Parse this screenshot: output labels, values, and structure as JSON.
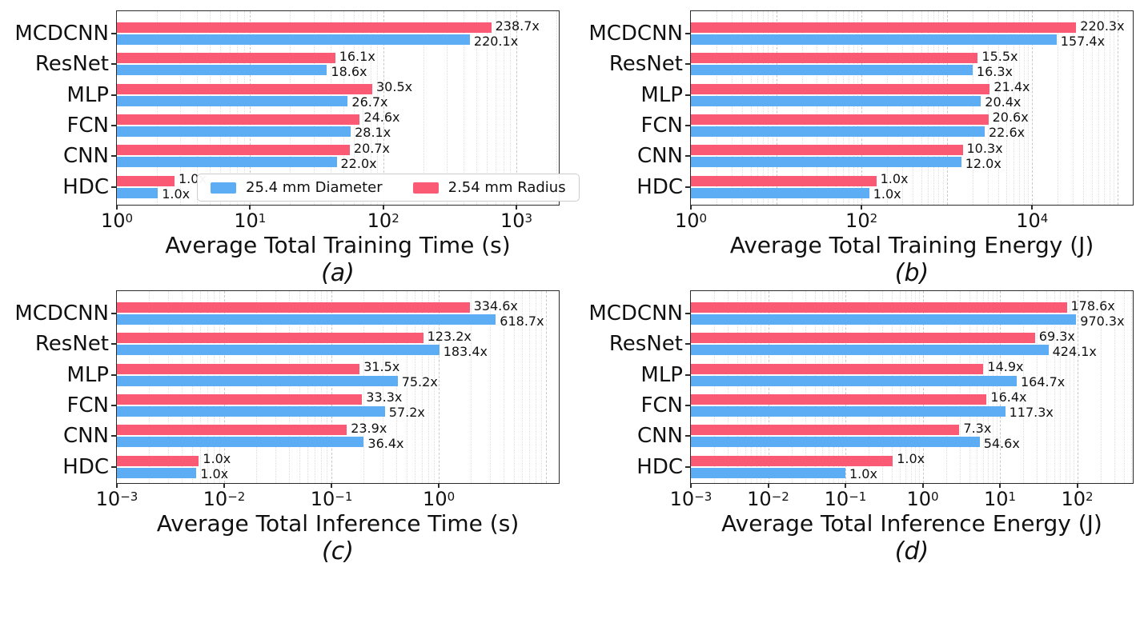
{
  "figure": {
    "background": "#ffffff"
  },
  "colors": {
    "diameter_blue": "#5dadf4",
    "radius_red": "#fb5a74",
    "text": "#111111"
  },
  "legend": {
    "items": [
      {
        "name": "diameter",
        "label": "25.4 mm Diameter",
        "color": "#5dadf4"
      },
      {
        "name": "radius",
        "label": "2.54 mm Radius",
        "color": "#fb5a74"
      }
    ]
  },
  "chart_data": [
    {
      "type": "bar",
      "orientation": "horizontal",
      "xscale": "log",
      "caption": "(a)",
      "xlabel": "Average Total Training Time (s)",
      "categories": [
        "MCDCNN",
        "ResNet",
        "MLP",
        "FCN",
        "CNN",
        "HDC"
      ],
      "xlim": [
        1,
        2140
      ],
      "tick_exponents": [
        0,
        1,
        2,
        3
      ],
      "grid": true,
      "legend_position": "lower-center-right",
      "show_legend": true,
      "series": [
        {
          "name": "2.54 mm Radius",
          "color": "#fb5a74",
          "row": "top",
          "values": [
            647,
            43.6,
            82.7,
            66.7,
            56.1,
            2.71
          ],
          "labels": [
            "238.7x",
            "16.1x",
            "30.5x",
            "24.6x",
            "20.7x",
            "1.0x"
          ]
        },
        {
          "name": "25.4 mm Diameter",
          "color": "#5dadf4",
          "row": "bottom",
          "values": [
            447,
            37.8,
            54.2,
            57.0,
            44.7,
            2.03
          ],
          "labels": [
            "220.1x",
            "18.6x",
            "26.7x",
            "28.1x",
            "22.0x",
            "1.0x"
          ]
        }
      ]
    },
    {
      "type": "bar",
      "orientation": "horizontal",
      "xscale": "log",
      "caption": "(b)",
      "xlabel": "Average Total Training Energy (J)",
      "categories": [
        "MCDCNN",
        "ResNet",
        "MLP",
        "FCN",
        "CNN",
        "HDC"
      ],
      "xlim": [
        1,
        158000
      ],
      "tick_exponents": [
        0,
        2,
        4
      ],
      "grid": true,
      "show_legend": false,
      "series": [
        {
          "name": "2.54 mm Radius",
          "color": "#fb5a74",
          "row": "top",
          "values": [
            32825,
            2310,
            3189,
            3069,
            1535,
            149
          ],
          "labels": [
            "220.3x",
            "15.5x",
            "21.4x",
            "20.6x",
            "10.3x",
            "1.0x"
          ]
        },
        {
          "name": "25.4 mm Diameter",
          "color": "#5dadf4",
          "row": "bottom",
          "values": [
            19360,
            2005,
            2509,
            2780,
            1476,
            123
          ],
          "labels": [
            "157.4x",
            "16.3x",
            "20.4x",
            "22.6x",
            "12.0x",
            "1.0x"
          ]
        }
      ]
    },
    {
      "type": "bar",
      "orientation": "horizontal",
      "xscale": "log",
      "caption": "(c)",
      "xlabel": "Average Total Inference Time (s)",
      "categories": [
        "MCDCNN",
        "ResNet",
        "MLP",
        "FCN",
        "CNN",
        "HDC"
      ],
      "xlim": [
        0.001,
        13.6
      ],
      "tick_exponents": [
        -3,
        -2,
        -1,
        0
      ],
      "grid": true,
      "show_legend": false,
      "series": [
        {
          "name": "2.54 mm Radius",
          "color": "#fb5a74",
          "row": "top",
          "values": [
            1.94,
            0.715,
            0.183,
            0.193,
            0.139,
            0.0058
          ],
          "labels": [
            "334.6x",
            "123.2x",
            "31.5x",
            "33.3x",
            "23.9x",
            "1.0x"
          ]
        },
        {
          "name": "25.4 mm Diameter",
          "color": "#5dadf4",
          "row": "bottom",
          "values": [
            3.4,
            1.01,
            0.414,
            0.315,
            0.2,
            0.0055
          ],
          "labels": [
            "618.7x",
            "183.4x",
            "75.2x",
            "57.2x",
            "36.4x",
            "1.0x"
          ]
        }
      ]
    },
    {
      "type": "bar",
      "orientation": "horizontal",
      "xscale": "log",
      "caption": "(d)",
      "xlabel": "Average Total Inference Energy (J)",
      "categories": [
        "MCDCNN",
        "ResNet",
        "MLP",
        "FCN",
        "CNN",
        "HDC"
      ],
      "xlim": [
        0.001,
        550
      ],
      "tick_exponents": [
        -3,
        -2,
        -1,
        0,
        1,
        2
      ],
      "grid": true,
      "show_legend": false,
      "series": [
        {
          "name": "2.54 mm Radius",
          "color": "#fb5a74",
          "row": "top",
          "values": [
            73.2,
            28.4,
            6.11,
            6.72,
            2.99,
            0.41
          ],
          "labels": [
            "178.6x",
            "69.3x",
            "14.9x",
            "16.4x",
            "7.3x",
            "1.0x"
          ]
        },
        {
          "name": "25.4 mm Diameter",
          "color": "#5dadf4",
          "row": "bottom",
          "values": [
            97.0,
            42.4,
            16.5,
            11.7,
            5.46,
            0.1
          ],
          "labels": [
            "970.3x",
            "424.1x",
            "164.7x",
            "117.3x",
            "54.6x",
            "1.0x"
          ]
        }
      ]
    }
  ]
}
